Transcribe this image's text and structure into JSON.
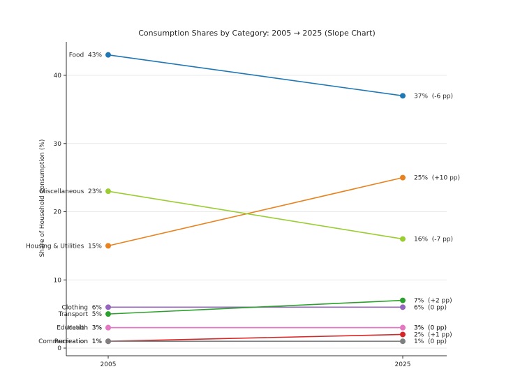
{
  "chart_data": {
    "type": "line",
    "subtype": "slope",
    "title": "Consumption Shares by Category: 2005 → 2025 (Slope Chart)",
    "ylabel": "Share of Household Consumption (%)",
    "x_labels": [
      "2005",
      "2025"
    ],
    "y_ticks": [
      0,
      10,
      20,
      30,
      40
    ],
    "ylim": [
      0,
      45
    ],
    "grid": "horizontal-faint",
    "legend_position": "none",
    "label_format_left": "{name}  {start}%",
    "label_format_right": "{end}%  ({delta})",
    "series": [
      {
        "name": "Food",
        "start": 43,
        "end": 37,
        "delta": "-6 pp",
        "color": "#1f77b4"
      },
      {
        "name": "Housing & Utilities",
        "start": 15,
        "end": 25,
        "delta": "+10 pp",
        "color": "#e8821e"
      },
      {
        "name": "Miscellaneous",
        "start": 23,
        "end": 16,
        "delta": "-7 pp",
        "color": "#9acd32"
      },
      {
        "name": "Clothing",
        "start": 6,
        "end": 6,
        "delta": "0 pp",
        "color": "#9467bd"
      },
      {
        "name": "Transport",
        "start": 5,
        "end": 7,
        "delta": "+2 pp",
        "color": "#2ca02c"
      },
      {
        "name": "Health",
        "start": 3,
        "end": 3,
        "delta": "0 pp",
        "color": "#e377c2"
      },
      {
        "name": "Education",
        "start": 3,
        "end": 3,
        "delta": "0 pp",
        "color": "#e377c2"
      },
      {
        "name": "Recreation",
        "start": 1,
        "end": 2,
        "delta": "+1 pp",
        "color": "#d62728"
      },
      {
        "name": "Communication",
        "start": 1,
        "end": 1,
        "delta": "0 pp",
        "color": "#7f7f7f"
      }
    ],
    "colors": {
      "text": "#262626",
      "spine": "#333333",
      "grid": "#e9e9e9",
      "background": "#ffffff"
    }
  }
}
